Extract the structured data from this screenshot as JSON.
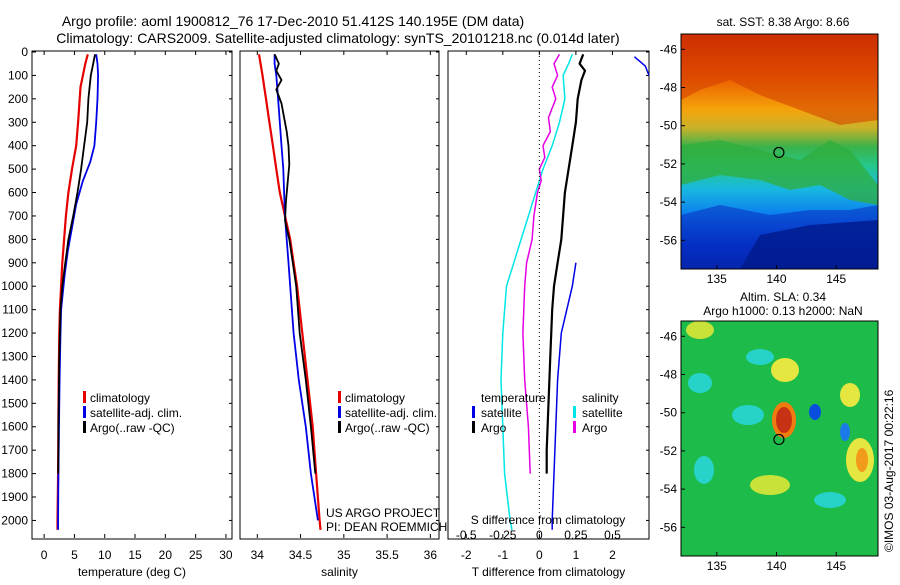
{
  "header": {
    "line1": "Argo profile: aoml 1900812_76 17-Dec-2010 51.412S 140.195E (DM data)",
    "line2": "Climatology: CARS2009. Satellite-adjusted climatology: synTS_20101218.nc (0.014d later)"
  },
  "footer": {
    "project": "US ARGO PROJECT",
    "pi": "PI: DEAN ROEMMICH",
    "imos": "©IMOS 03-Aug-2017 00:22:16"
  },
  "colors": {
    "climatology": "#e60000",
    "satellite": "#0000e6",
    "argo": "#000000",
    "cyan": "#00e6e6",
    "magenta": "#e600e6"
  },
  "chart_data": [
    {
      "id": "temperature",
      "type": "line",
      "xlabel": "temperature (deg C)",
      "ylabel": "",
      "xlim": [
        -2,
        31
      ],
      "ylim": [
        2075,
        0
      ],
      "xticks": [
        0,
        5,
        10,
        15,
        20,
        25,
        30
      ],
      "yticks": [
        0,
        100,
        200,
        300,
        400,
        500,
        600,
        700,
        800,
        900,
        1000,
        1100,
        1200,
        1300,
        1400,
        1500,
        1600,
        1700,
        1800,
        1900,
        2000
      ],
      "legend": {
        "placement": "lower-middle",
        "entries": [
          {
            "label": "climatology",
            "color": "#e60000"
          },
          {
            "label": "satellite-adj. clim.",
            "color": "#0000e6"
          },
          {
            "label": "Argo(..raw -QC)",
            "color": "#000000"
          }
        ]
      },
      "series": [
        {
          "name": "climatology",
          "color": "#e60000",
          "width": 2.2,
          "points": [
            [
              7.2,
              10
            ],
            [
              6.8,
              50
            ],
            [
              6.0,
              150
            ],
            [
              5.6,
              300
            ],
            [
              5.3,
              400
            ],
            [
              4.6,
              500
            ],
            [
              4.0,
              600
            ],
            [
              3.6,
              700
            ],
            [
              3.3,
              800
            ],
            [
              3.0,
              900
            ],
            [
              2.8,
              1000
            ],
            [
              2.6,
              1100
            ],
            [
              2.5,
              1200
            ],
            [
              2.4,
              1400
            ],
            [
              2.35,
              1600
            ],
            [
              2.3,
              1800
            ],
            [
              2.2,
              2000
            ],
            [
              2.2,
              2040
            ]
          ]
        },
        {
          "name": "satellite-adj. clim.",
          "color": "#0000e6",
          "width": 1.8,
          "points": [
            [
              8.6,
              10
            ],
            [
              8.8,
              50
            ],
            [
              8.9,
              100
            ],
            [
              8.8,
              200
            ],
            [
              8.6,
              300
            ],
            [
              8.3,
              400
            ],
            [
              7.6,
              470
            ],
            [
              6.4,
              550
            ],
            [
              5.3,
              650
            ],
            [
              4.6,
              750
            ],
            [
              3.9,
              850
            ],
            [
              3.4,
              950
            ],
            [
              3.0,
              1050
            ],
            [
              2.8,
              1100
            ],
            [
              2.7,
              1200
            ],
            [
              2.55,
              1400
            ],
            [
              2.45,
              1600
            ],
            [
              2.35,
              1800
            ],
            [
              2.3,
              2000
            ],
            [
              2.3,
              2040
            ]
          ]
        },
        {
          "name": "Argo(..raw -QC)",
          "color": "#000000",
          "width": 1.8,
          "points": [
            [
              8.4,
              10
            ],
            [
              8.1,
              50
            ],
            [
              7.7,
              100
            ],
            [
              7.5,
              150
            ],
            [
              7.3,
              200
            ],
            [
              7.1,
              300
            ],
            [
              6.6,
              400
            ],
            [
              6.1,
              500
            ],
            [
              5.5,
              600
            ],
            [
              4.8,
              700
            ],
            [
              4.0,
              800
            ],
            [
              3.5,
              900
            ],
            [
              3.0,
              1000
            ],
            [
              2.7,
              1100
            ],
            [
              2.6,
              1200
            ],
            [
              2.5,
              1300
            ],
            [
              2.45,
              1400
            ],
            [
              2.4,
              1500
            ],
            [
              2.35,
              1600
            ],
            [
              2.35,
              1700
            ],
            [
              2.3,
              1800
            ]
          ]
        }
      ]
    },
    {
      "id": "salinity",
      "type": "line",
      "xlabel": "salinity",
      "ylabel": "",
      "xlim": [
        33.8,
        36.1
      ],
      "ylim": [
        2075,
        0
      ],
      "xticks": [
        34,
        34.5,
        35,
        35.5,
        36
      ],
      "legend": {
        "placement": "lower-right",
        "entries": [
          {
            "label": "climatology",
            "color": "#e60000"
          },
          {
            "label": "satellite-adj. clim.",
            "color": "#0000e6"
          },
          {
            "label": "Argo(..raw -QC)",
            "color": "#000000"
          }
        ]
      },
      "series": [
        {
          "name": "climatology",
          "color": "#e60000",
          "width": 2.2,
          "points": [
            [
              34.02,
              10
            ],
            [
              34.06,
              100
            ],
            [
              34.1,
              200
            ],
            [
              34.14,
              300
            ],
            [
              34.18,
              400
            ],
            [
              34.22,
              500
            ],
            [
              34.26,
              600
            ],
            [
              34.32,
              700
            ],
            [
              34.38,
              800
            ],
            [
              34.42,
              900
            ],
            [
              34.46,
              1000
            ],
            [
              34.52,
              1200
            ],
            [
              34.58,
              1400
            ],
            [
              34.64,
              1600
            ],
            [
              34.68,
              1800
            ],
            [
              34.72,
              2000
            ],
            [
              34.73,
              2040
            ]
          ]
        },
        {
          "name": "satellite-adj. clim.",
          "color": "#0000e6",
          "width": 1.8,
          "points": [
            [
              34.2,
              10
            ],
            [
              34.2,
              50
            ],
            [
              34.22,
              100
            ],
            [
              34.24,
              200
            ],
            [
              34.26,
              300
            ],
            [
              34.28,
              400
            ],
            [
              34.3,
              500
            ],
            [
              34.31,
              600
            ],
            [
              34.32,
              700
            ],
            [
              34.34,
              800
            ],
            [
              34.36,
              900
            ],
            [
              34.38,
              1000
            ],
            [
              34.42,
              1200
            ],
            [
              34.48,
              1400
            ],
            [
              34.56,
              1600
            ],
            [
              34.62,
              1800
            ],
            [
              34.7,
              2000
            ]
          ]
        },
        {
          "name": "Argo(..raw -QC)",
          "color": "#000000",
          "width": 1.8,
          "points": [
            [
              34.2,
              10
            ],
            [
              34.25,
              50
            ],
            [
              34.22,
              80
            ],
            [
              34.28,
              120
            ],
            [
              34.22,
              160
            ],
            [
              34.28,
              220
            ],
            [
              34.31,
              280
            ],
            [
              34.34,
              340
            ],
            [
              34.36,
              400
            ],
            [
              34.37,
              480
            ],
            [
              34.35,
              560
            ],
            [
              34.33,
              640
            ],
            [
              34.32,
              720
            ],
            [
              34.37,
              800
            ],
            [
              34.41,
              900
            ],
            [
              34.45,
              1000
            ],
            [
              34.49,
              1200
            ],
            [
              34.56,
              1400
            ],
            [
              34.62,
              1600
            ],
            [
              34.67,
              1800
            ]
          ]
        }
      ]
    },
    {
      "id": "difference",
      "type": "line",
      "xlabel": "T difference from climatology",
      "xlabel_top": "S difference from climatology",
      "xlim": [
        -2.5,
        3.0
      ],
      "ylim": [
        2075,
        0
      ],
      "xticks": [
        -2,
        -1,
        0,
        1,
        2
      ],
      "xticks_top": [
        -0.5,
        -0.25,
        0,
        0.25,
        0.5
      ],
      "legend": {
        "left_title": "temperature",
        "right_title": "salinity",
        "entries": [
          {
            "label": "satellite",
            "color": "#0000e6",
            "group": "temperature"
          },
          {
            "label": "Argo",
            "color": "#000000",
            "group": "temperature"
          },
          {
            "label": "satellite",
            "color": "#00e6e6",
            "group": "salinity"
          },
          {
            "label": "Argo",
            "color": "#e600e6",
            "group": "salinity"
          }
        ]
      },
      "series": [
        {
          "name": "satellite",
          "color": "#0000e6",
          "width": 1.5,
          "points": [
            [
              1.0,
              900
            ],
            [
              0.9,
              1000
            ],
            [
              0.6,
              1200
            ],
            [
              0.5,
              1400
            ],
            [
              0.45,
              1600
            ],
            [
              0.4,
              1800
            ],
            [
              0.35,
              2000
            ],
            [
              0.35,
              2040
            ]
          ],
          "points_upper": [
            [
              2.6,
              20
            ],
            [
              2.9,
              60
            ],
            [
              3.0,
              100
            ]
          ]
        },
        {
          "name": "Argo",
          "color": "#000000",
          "width": 2.2,
          "points": [
            [
              1.2,
              10
            ],
            [
              1.1,
              50
            ],
            [
              1.25,
              80
            ],
            [
              1.15,
              120
            ],
            [
              1.05,
              200
            ],
            [
              1.0,
              300
            ],
            [
              0.9,
              400
            ],
            [
              0.8,
              500
            ],
            [
              0.7,
              600
            ],
            [
              0.65,
              700
            ],
            [
              0.6,
              800
            ],
            [
              0.5,
              900
            ],
            [
              0.4,
              1000
            ],
            [
              0.35,
              1100
            ],
            [
              0.3,
              1300
            ],
            [
              0.25,
              1500
            ],
            [
              0.2,
              1700
            ],
            [
              0.2,
              1800
            ]
          ]
        },
        {
          "name": "satellite (salinity)",
          "color": "#00e6e6",
          "width": 1.5,
          "points": [
            [
              0.9,
              10
            ],
            [
              0.8,
              50
            ],
            [
              0.65,
              100
            ],
            [
              0.7,
              200
            ],
            [
              0.55,
              300
            ],
            [
              0.35,
              400
            ],
            [
              0.1,
              500
            ],
            [
              -0.1,
              600
            ],
            [
              -0.3,
              700
            ],
            [
              -0.5,
              800
            ],
            [
              -0.7,
              900
            ],
            [
              -0.9,
              1000
            ],
            [
              -1.0,
              1200
            ],
            [
              -1.05,
              1400
            ],
            [
              -1.0,
              1600
            ],
            [
              -0.95,
              1800
            ],
            [
              -0.8,
              2000
            ],
            [
              -0.75,
              2040
            ]
          ]
        },
        {
          "name": "Argo (salinity)",
          "color": "#e600e6",
          "width": 1.5,
          "points": [
            [
              0.55,
              10
            ],
            [
              0.4,
              50
            ],
            [
              0.5,
              100
            ],
            [
              0.35,
              150
            ],
            [
              0.45,
              200
            ],
            [
              0.25,
              280
            ],
            [
              0.3,
              340
            ],
            [
              0.1,
              400
            ],
            [
              0.15,
              450
            ],
            [
              0.0,
              500
            ],
            [
              0.05,
              550
            ],
            [
              -0.05,
              600
            ],
            [
              -0.15,
              700
            ],
            [
              -0.2,
              800
            ],
            [
              -0.35,
              900
            ],
            [
              -0.4,
              1000
            ],
            [
              -0.45,
              1200
            ],
            [
              -0.4,
              1400
            ],
            [
              -0.3,
              1600
            ],
            [
              -0.25,
              1800
            ]
          ]
        }
      ]
    },
    {
      "id": "sst_map",
      "type": "heatmap",
      "title": "sat. SST: 8.38 Argo: 8.66",
      "xlim": [
        132,
        148.5
      ],
      "ylim": [
        -57.5,
        -45.2
      ],
      "xticks": [
        135,
        140,
        145
      ],
      "yticks": [
        -46,
        -48,
        -50,
        -52,
        -54,
        -56
      ],
      "marker": {
        "lon": 140.2,
        "lat": -51.4
      }
    },
    {
      "id": "sla_map",
      "type": "heatmap",
      "title": "Altim. SLA: 0.34",
      "subtitle": "Argo h1000: 0.13 h2000: NaN",
      "xlim": [
        132,
        148.5
      ],
      "ylim": [
        -57.5,
        -45.2
      ],
      "xticks": [
        135,
        140,
        145
      ],
      "yticks": [
        -46,
        -48,
        -50,
        -52,
        -54,
        -56
      ],
      "marker": {
        "lon": 140.2,
        "lat": -51.4
      }
    }
  ]
}
